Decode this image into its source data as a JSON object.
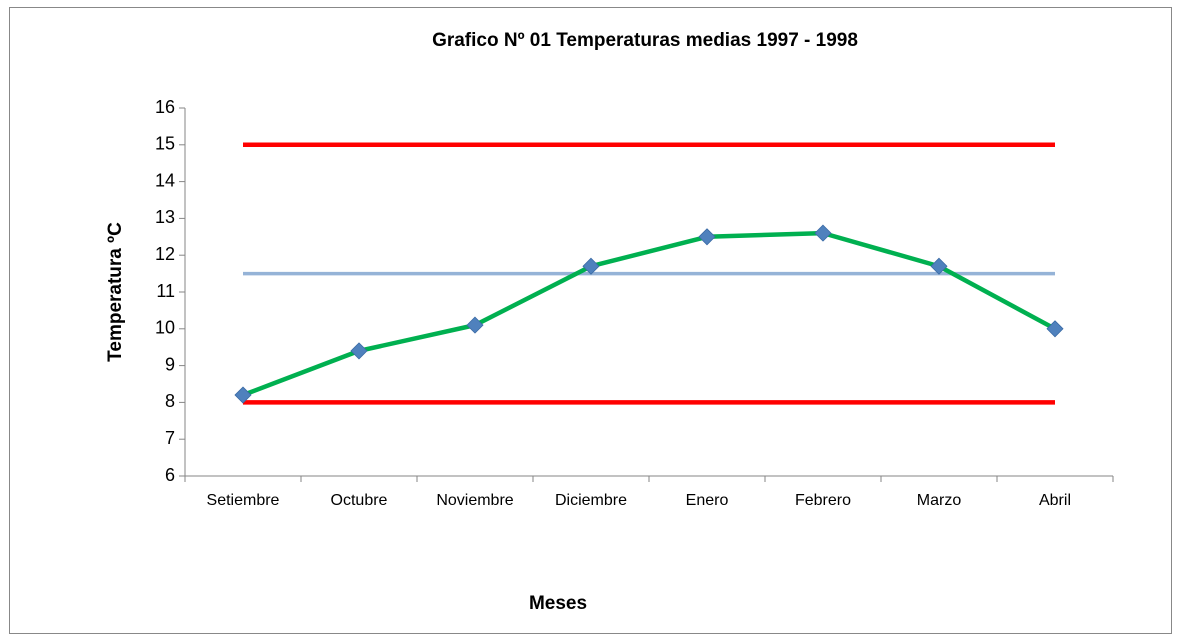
{
  "chart_data": {
    "type": "line",
    "title": "Grafico Nº 01 Temperaturas medias  1997 - 1998",
    "x_label": "Meses",
    "y_label": "Temperatura ºC",
    "categories": [
      "Setiembre",
      "Octubre",
      "Noviembre",
      "Diciembre",
      "Enero",
      "Febrero",
      "Marzo",
      "Abril"
    ],
    "series": [
      {
        "color": "#ff0000",
        "values": [
          15,
          15,
          15,
          15,
          15,
          15,
          15,
          15
        ]
      },
      {
        "color": "#ff0000",
        "values": [
          8,
          8,
          8,
          8,
          8,
          8,
          8,
          8
        ]
      },
      {
        "color": "#95b3d7",
        "values": [
          11.5,
          11.5,
          11.5,
          11.5,
          11.5,
          11.5,
          11.5,
          11.5
        ]
      },
      {
        "color": "#00b050",
        "marker": "diamond",
        "marker_color": "#4f81bd",
        "values": [
          8.2,
          9.4,
          10.1,
          11.7,
          12.5,
          12.6,
          11.7,
          10.0
        ]
      }
    ],
    "ylim": [
      6,
      16
    ],
    "yticks": [
      6,
      7,
      8,
      9,
      10,
      11,
      12,
      13,
      14,
      15,
      16
    ]
  }
}
